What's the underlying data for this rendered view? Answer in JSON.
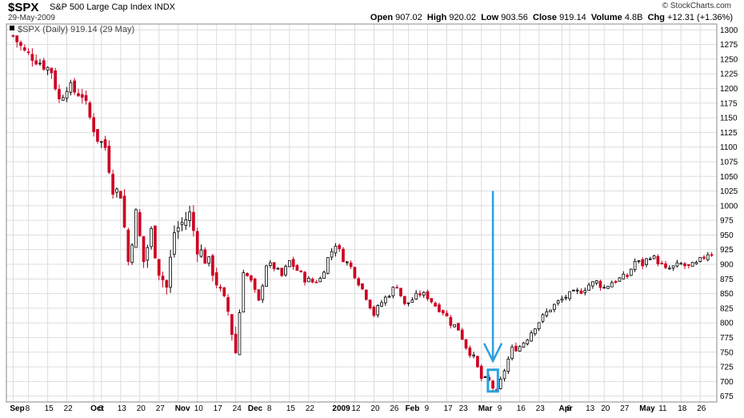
{
  "header": {
    "symbol": "$SPX",
    "name": "S&P 500 Large Cap Index",
    "exchange": "INDX",
    "date": "29-May-2009",
    "brand": "© StockCharts.com",
    "open_label": "Open",
    "open": "907.02",
    "high_label": "High",
    "high": "920.02",
    "low_label": "Low",
    "low": "903.56",
    "close_label": "Close",
    "close": "919.14",
    "volume_label": "Volume",
    "volume": "4.8B",
    "chg_label": "Chg",
    "chg": "+12.31 (+1.36%)"
  },
  "legend": "$SPX (Daily) 919.14 (29 May)",
  "colors": {
    "up": "#000000",
    "down": "#cc0022",
    "grid": "#dddddd",
    "arrow": "#29a0e0",
    "highlight": "#29a0e0"
  },
  "chart_data": {
    "type": "candlestick",
    "ylim": [
      665,
      1310
    ],
    "y_ticks": [
      675,
      700,
      725,
      750,
      775,
      800,
      825,
      850,
      875,
      900,
      925,
      950,
      975,
      1000,
      1025,
      1050,
      1075,
      1100,
      1125,
      1150,
      1175,
      1200,
      1225,
      1250,
      1275,
      1300
    ],
    "x_tick_labels": [
      {
        "label": "Sep",
        "bold": true,
        "i": 0
      },
      {
        "label": "8",
        "bold": false,
        "i": 4
      },
      {
        "label": "15",
        "bold": false,
        "i": 9
      },
      {
        "label": "22",
        "bold": false,
        "i": 14
      },
      {
        "label": "Oct",
        "bold": true,
        "i": 21
      },
      {
        "label": "6",
        "bold": false,
        "i": 23
      },
      {
        "label": "13",
        "bold": false,
        "i": 28
      },
      {
        "label": "20",
        "bold": false,
        "i": 33
      },
      {
        "label": "27",
        "bold": false,
        "i": 38
      },
      {
        "label": "Nov",
        "bold": true,
        "i": 43
      },
      {
        "label": "10",
        "bold": false,
        "i": 48
      },
      {
        "label": "17",
        "bold": false,
        "i": 53
      },
      {
        "label": "24",
        "bold": false,
        "i": 58
      },
      {
        "label": "Dec",
        "bold": true,
        "i": 62
      },
      {
        "label": "8",
        "bold": false,
        "i": 67
      },
      {
        "label": "15",
        "bold": false,
        "i": 72
      },
      {
        "label": "22",
        "bold": false,
        "i": 77
      },
      {
        "label": "2009",
        "bold": true,
        "i": 84
      },
      {
        "label": "12",
        "bold": false,
        "i": 89
      },
      {
        "label": "20",
        "bold": false,
        "i": 94
      },
      {
        "label": "26",
        "bold": false,
        "i": 99
      },
      {
        "label": "Feb",
        "bold": true,
        "i": 103
      },
      {
        "label": "9",
        "bold": false,
        "i": 108
      },
      {
        "label": "17",
        "bold": false,
        "i": 113
      },
      {
        "label": "23",
        "bold": false,
        "i": 117
      },
      {
        "label": "Mar",
        "bold": true,
        "i": 122
      },
      {
        "label": "9",
        "bold": false,
        "i": 127
      },
      {
        "label": "16",
        "bold": false,
        "i": 132
      },
      {
        "label": "23",
        "bold": false,
        "i": 137
      },
      {
        "label": "Apr",
        "bold": true,
        "i": 143
      },
      {
        "label": "6",
        "bold": false,
        "i": 145
      },
      {
        "label": "13",
        "bold": false,
        "i": 150
      },
      {
        "label": "20",
        "bold": false,
        "i": 154
      },
      {
        "label": "27",
        "bold": false,
        "i": 159
      },
      {
        "label": "May",
        "bold": true,
        "i": 164
      },
      {
        "label": "11",
        "bold": false,
        "i": 169
      },
      {
        "label": "18",
        "bold": false,
        "i": 174
      },
      {
        "label": "26",
        "bold": false,
        "i": 179
      }
    ],
    "close_points": [
      [
        0,
        1290
      ],
      [
        3,
        1262
      ],
      [
        5,
        1255
      ],
      [
        8,
        1240
      ],
      [
        10,
        1230
      ],
      [
        12,
        1180
      ],
      [
        14,
        1205
      ],
      [
        16,
        1195
      ],
      [
        18,
        1190
      ],
      [
        20,
        1150
      ],
      [
        22,
        1115
      ],
      [
        24,
        1100
      ],
      [
        26,
        1030
      ],
      [
        28,
        1020
      ],
      [
        30,
        905
      ],
      [
        32,
        985
      ],
      [
        34,
        905
      ],
      [
        36,
        955
      ],
      [
        38,
        890
      ],
      [
        40,
        860
      ],
      [
        42,
        955
      ],
      [
        44,
        970
      ],
      [
        46,
        985
      ],
      [
        48,
        930
      ],
      [
        50,
        910
      ],
      [
        52,
        890
      ],
      [
        54,
        850
      ],
      [
        56,
        820
      ],
      [
        58,
        750
      ],
      [
        60,
        890
      ],
      [
        62,
        870
      ],
      [
        64,
        835
      ],
      [
        66,
        900
      ],
      [
        68,
        895
      ],
      [
        70,
        880
      ],
      [
        72,
        905
      ],
      [
        74,
        890
      ],
      [
        76,
        875
      ],
      [
        78,
        870
      ],
      [
        80,
        875
      ],
      [
        82,
        910
      ],
      [
        84,
        935
      ],
      [
        86,
        910
      ],
      [
        88,
        895
      ],
      [
        90,
        870
      ],
      [
        92,
        845
      ],
      [
        94,
        815
      ],
      [
        96,
        835
      ],
      [
        98,
        850
      ],
      [
        100,
        865
      ],
      [
        102,
        830
      ],
      [
        104,
        840
      ],
      [
        106,
        850
      ],
      [
        108,
        845
      ],
      [
        110,
        830
      ],
      [
        112,
        820
      ],
      [
        114,
        800
      ],
      [
        116,
        790
      ],
      [
        118,
        760
      ],
      [
        120,
        740
      ],
      [
        122,
        705
      ],
      [
        124,
        700
      ],
      [
        126,
        680
      ],
      [
        128,
        720
      ],
      [
        130,
        755
      ],
      [
        132,
        760
      ],
      [
        134,
        775
      ],
      [
        136,
        795
      ],
      [
        138,
        810
      ],
      [
        140,
        825
      ],
      [
        142,
        835
      ],
      [
        144,
        845
      ],
      [
        146,
        850
      ],
      [
        148,
        855
      ],
      [
        150,
        865
      ],
      [
        152,
        870
      ],
      [
        154,
        860
      ],
      [
        156,
        870
      ],
      [
        158,
        875
      ],
      [
        160,
        880
      ],
      [
        162,
        905
      ],
      [
        164,
        900
      ],
      [
        166,
        915
      ],
      [
        168,
        905
      ],
      [
        170,
        890
      ],
      [
        172,
        895
      ],
      [
        174,
        900
      ],
      [
        176,
        895
      ],
      [
        178,
        900
      ],
      [
        181,
        919
      ]
    ],
    "n": 183,
    "highlight_index": 125,
    "arrow_index": 125
  }
}
